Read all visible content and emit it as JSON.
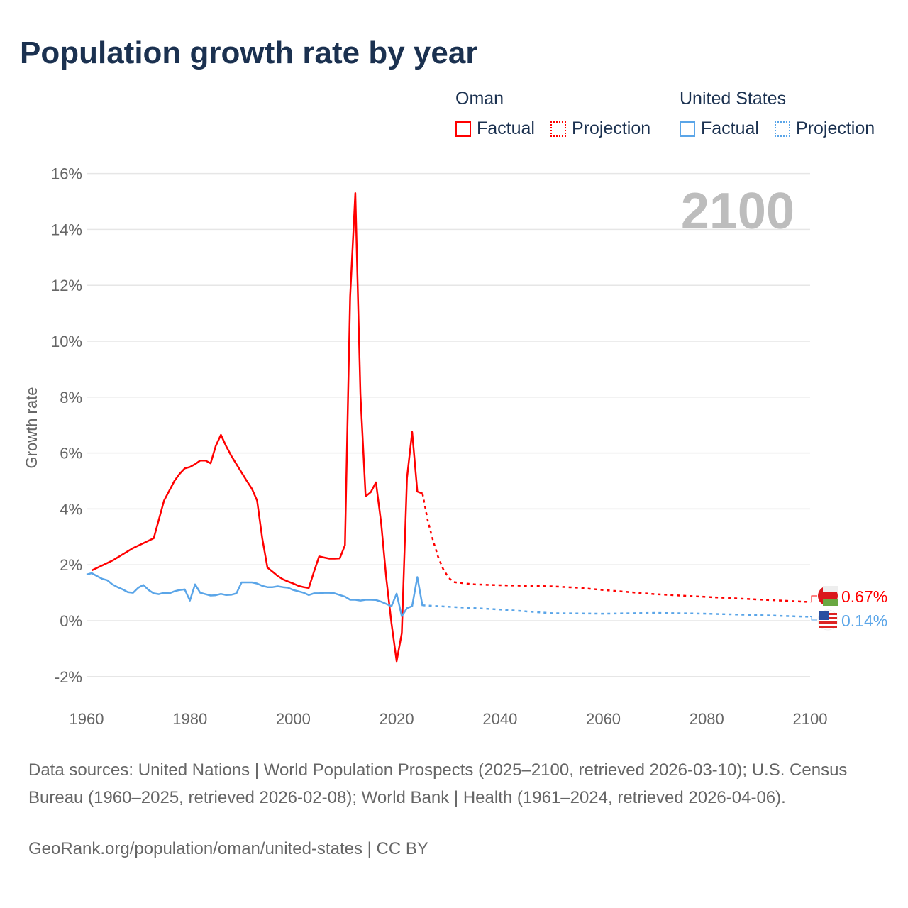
{
  "title": "Population growth rate by year",
  "legend": {
    "groups": [
      {
        "country": "Oman",
        "color": "#ff0000",
        "factual": "Factual",
        "projection": "Projection"
      },
      {
        "country": "United States",
        "color": "#5aa5e8",
        "factual": "Factual",
        "projection": "Projection"
      }
    ]
  },
  "source_text": "Data sources: United Nations | World Population Prospects (2025–2100, retrieved 2026-03-10); U.S. Census Bureau (1960–2025, retrieved 2026-02-08); World Bank | Health (1961–2024, retrieved 2026-04-06).",
  "credit": "GeoRank.org/population/oman/united-states | CC BY",
  "chart_data": {
    "type": "line",
    "title": "Population growth rate by year",
    "ylabel": "Growth rate",
    "xlabel": "",
    "xlim": [
      1960,
      2100
    ],
    "ylim": [
      -3,
      16.5
    ],
    "xticks": [
      "1960",
      "1980",
      "2000",
      "2020",
      "2040",
      "2060",
      "2080",
      "2100"
    ],
    "yticks": [
      "16%",
      "14%",
      "12%",
      "10%",
      "8%",
      "6%",
      "4%",
      "2%",
      "0%",
      "-2%"
    ],
    "yvals": [
      16,
      14,
      12,
      10,
      8,
      6,
      4,
      2,
      0,
      -2
    ],
    "year_watermark": "2100",
    "series": [
      {
        "name": "Oman",
        "color": "#ff0000",
        "end_label": "0.67%",
        "factual": [
          [
            1961,
            1.8
          ],
          [
            1965,
            2.15
          ],
          [
            1969,
            2.6
          ],
          [
            1973,
            2.95
          ],
          [
            1975,
            4.3
          ],
          [
            1977,
            5.0
          ],
          [
            1978,
            5.25
          ],
          [
            1979,
            5.45
          ],
          [
            1980,
            5.5
          ],
          [
            1981,
            5.6
          ],
          [
            1982,
            5.73
          ],
          [
            1983,
            5.73
          ],
          [
            1984,
            5.63
          ],
          [
            1985,
            6.25
          ],
          [
            1986,
            6.65
          ],
          [
            1987,
            6.25
          ],
          [
            1988,
            5.9
          ],
          [
            1989,
            5.6
          ],
          [
            1990,
            5.3
          ],
          [
            1991,
            5.0
          ],
          [
            1992,
            4.72
          ],
          [
            1993,
            4.3
          ],
          [
            1994,
            2.95
          ],
          [
            1995,
            1.9
          ],
          [
            1996,
            1.75
          ],
          [
            1997,
            1.6
          ],
          [
            1998,
            1.48
          ],
          [
            1999,
            1.4
          ],
          [
            2000,
            1.33
          ],
          [
            2001,
            1.25
          ],
          [
            2002,
            1.2
          ],
          [
            2003,
            1.17
          ],
          [
            2004,
            1.75
          ],
          [
            2005,
            2.3
          ],
          [
            2006,
            2.26
          ],
          [
            2007,
            2.22
          ],
          [
            2008,
            2.22
          ],
          [
            2009,
            2.23
          ],
          [
            2010,
            2.7
          ],
          [
            2011,
            11.6
          ],
          [
            2012,
            15.3
          ],
          [
            2013,
            8.1
          ],
          [
            2014,
            4.45
          ],
          [
            2015,
            4.6
          ],
          [
            2016,
            4.95
          ],
          [
            2017,
            3.5
          ],
          [
            2018,
            1.5
          ],
          [
            2019,
            -0.1
          ],
          [
            2020,
            -1.45
          ],
          [
            2021,
            -0.45
          ],
          [
            2022,
            5.1
          ],
          [
            2023,
            6.75
          ],
          [
            2024,
            4.62
          ],
          [
            2025,
            4.55
          ]
        ],
        "projection": [
          [
            2025,
            4.55
          ],
          [
            2026,
            3.6
          ],
          [
            2027,
            2.9
          ],
          [
            2028,
            2.3
          ],
          [
            2029,
            1.85
          ],
          [
            2030,
            1.55
          ],
          [
            2031,
            1.38
          ],
          [
            2035,
            1.3
          ],
          [
            2040,
            1.27
          ],
          [
            2050,
            1.23
          ],
          [
            2055,
            1.18
          ],
          [
            2060,
            1.1
          ],
          [
            2070,
            0.95
          ],
          [
            2080,
            0.85
          ],
          [
            2090,
            0.76
          ],
          [
            2100,
            0.67
          ]
        ]
      },
      {
        "name": "United States",
        "color": "#5aa5e8",
        "end_label": "0.14%",
        "factual": [
          [
            1960,
            1.65
          ],
          [
            1961,
            1.7
          ],
          [
            1962,
            1.6
          ],
          [
            1963,
            1.5
          ],
          [
            1964,
            1.45
          ],
          [
            1965,
            1.3
          ],
          [
            1966,
            1.2
          ],
          [
            1967,
            1.12
          ],
          [
            1968,
            1.02
          ],
          [
            1969,
            1.0
          ],
          [
            1970,
            1.18
          ],
          [
            1971,
            1.28
          ],
          [
            1972,
            1.1
          ],
          [
            1973,
            0.98
          ],
          [
            1974,
            0.95
          ],
          [
            1975,
            1.0
          ],
          [
            1976,
            0.98
          ],
          [
            1977,
            1.05
          ],
          [
            1978,
            1.1
          ],
          [
            1979,
            1.12
          ],
          [
            1980,
            0.72
          ],
          [
            1981,
            1.3
          ],
          [
            1982,
            1.0
          ],
          [
            1983,
            0.95
          ],
          [
            1984,
            0.9
          ],
          [
            1985,
            0.91
          ],
          [
            1986,
            0.96
          ],
          [
            1987,
            0.92
          ],
          [
            1988,
            0.93
          ],
          [
            1989,
            0.98
          ],
          [
            1990,
            1.37
          ],
          [
            1991,
            1.37
          ],
          [
            1992,
            1.37
          ],
          [
            1993,
            1.33
          ],
          [
            1994,
            1.25
          ],
          [
            1995,
            1.2
          ],
          [
            1996,
            1.2
          ],
          [
            1997,
            1.23
          ],
          [
            1998,
            1.2
          ],
          [
            1999,
            1.18
          ],
          [
            2000,
            1.1
          ],
          [
            2001,
            1.05
          ],
          [
            2002,
            1.0
          ],
          [
            2003,
            0.92
          ],
          [
            2004,
            0.98
          ],
          [
            2005,
            0.98
          ],
          [
            2006,
            1.0
          ],
          [
            2007,
            1.0
          ],
          [
            2008,
            0.98
          ],
          [
            2009,
            0.92
          ],
          [
            2010,
            0.86
          ],
          [
            2011,
            0.75
          ],
          [
            2012,
            0.75
          ],
          [
            2013,
            0.72
          ],
          [
            2014,
            0.75
          ],
          [
            2015,
            0.75
          ],
          [
            2016,
            0.74
          ],
          [
            2017,
            0.68
          ],
          [
            2018,
            0.6
          ],
          [
            2019,
            0.52
          ],
          [
            2020,
            0.97
          ],
          [
            2021,
            0.16
          ],
          [
            2022,
            0.45
          ],
          [
            2023,
            0.52
          ],
          [
            2024,
            1.56
          ],
          [
            2025,
            0.53
          ]
        ],
        "projection": [
          [
            2025,
            0.55
          ],
          [
            2030,
            0.5
          ],
          [
            2040,
            0.4
          ],
          [
            2050,
            0.27
          ],
          [
            2060,
            0.25
          ],
          [
            2070,
            0.28
          ],
          [
            2080,
            0.25
          ],
          [
            2090,
            0.2
          ],
          [
            2100,
            0.14
          ]
        ]
      }
    ]
  }
}
